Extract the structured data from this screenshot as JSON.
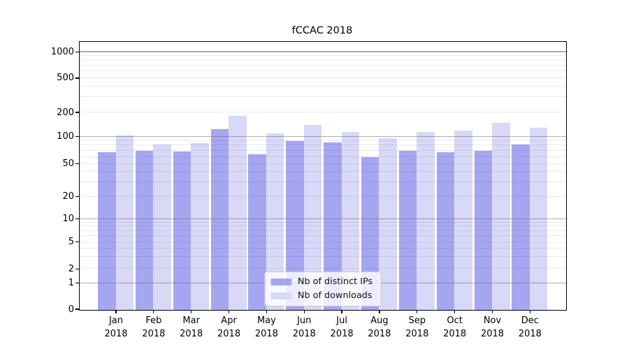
{
  "chart_data": {
    "type": "bar",
    "title": "fCCAC 2018",
    "categories": [
      "Jan",
      "Feb",
      "Mar",
      "Apr",
      "May",
      "Jun",
      "Jul",
      "Aug",
      "Sep",
      "Oct",
      "Nov",
      "Dec"
    ],
    "category_year": "2018",
    "series": [
      {
        "name": "Nb of distinct IPs",
        "color": "#a6a6f0",
        "values": [
          68,
          70,
          69,
          124,
          65,
          91,
          87,
          60,
          70,
          68,
          70,
          82
        ]
      },
      {
        "name": "Nb of downloads",
        "color": "#d8d8f7",
        "values": [
          105,
          83,
          86,
          185,
          110,
          140,
          116,
          96,
          115,
          121,
          151,
          131
        ]
      }
    ],
    "yscale": "symlog",
    "yticks": [
      0,
      1,
      2,
      5,
      10,
      20,
      50,
      100,
      200,
      500,
      1000
    ],
    "ylim": [
      0,
      1300
    ],
    "grid": true,
    "legend_position": "lower center",
    "colors": {
      "major_gridline": "#696969",
      "minor_gridline": "#e8e8e8",
      "axis_line": "#000000",
      "background": "#ffffff"
    }
  }
}
